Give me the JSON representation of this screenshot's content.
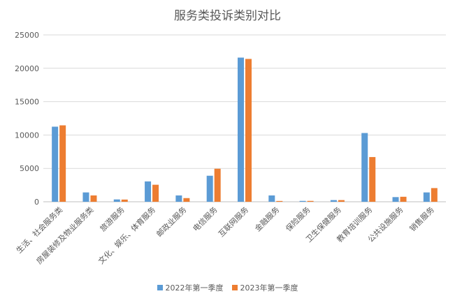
{
  "chart_data": {
    "type": "bar",
    "title": "服务类投诉类别对比",
    "categories": [
      "生活、社会服务类",
      "房屋装修及物业服务类",
      "旅游服务",
      "文化、娱乐、体育服务",
      "邮政业服务",
      "电信服务",
      "互联网服务",
      "金融服务",
      "保险服务",
      "卫生保健服务",
      "教育培训服务",
      "公共设施服务",
      "销售服务"
    ],
    "series": [
      {
        "name": "2022年第一季度",
        "color": "#5B9BD5",
        "values": [
          11250,
          1400,
          350,
          3050,
          950,
          3900,
          21600,
          950,
          130,
          250,
          10300,
          700,
          1400
        ]
      },
      {
        "name": "2023年第一季度",
        "color": "#ED7D31",
        "values": [
          11450,
          950,
          330,
          2550,
          550,
          4950,
          21400,
          120,
          130,
          250,
          6700,
          750,
          2050
        ]
      }
    ],
    "ylim": [
      0,
      25000
    ],
    "yticks": [
      0,
      5000,
      10000,
      15000,
      20000,
      25000
    ],
    "grid": true,
    "legend_position": "bottom"
  }
}
